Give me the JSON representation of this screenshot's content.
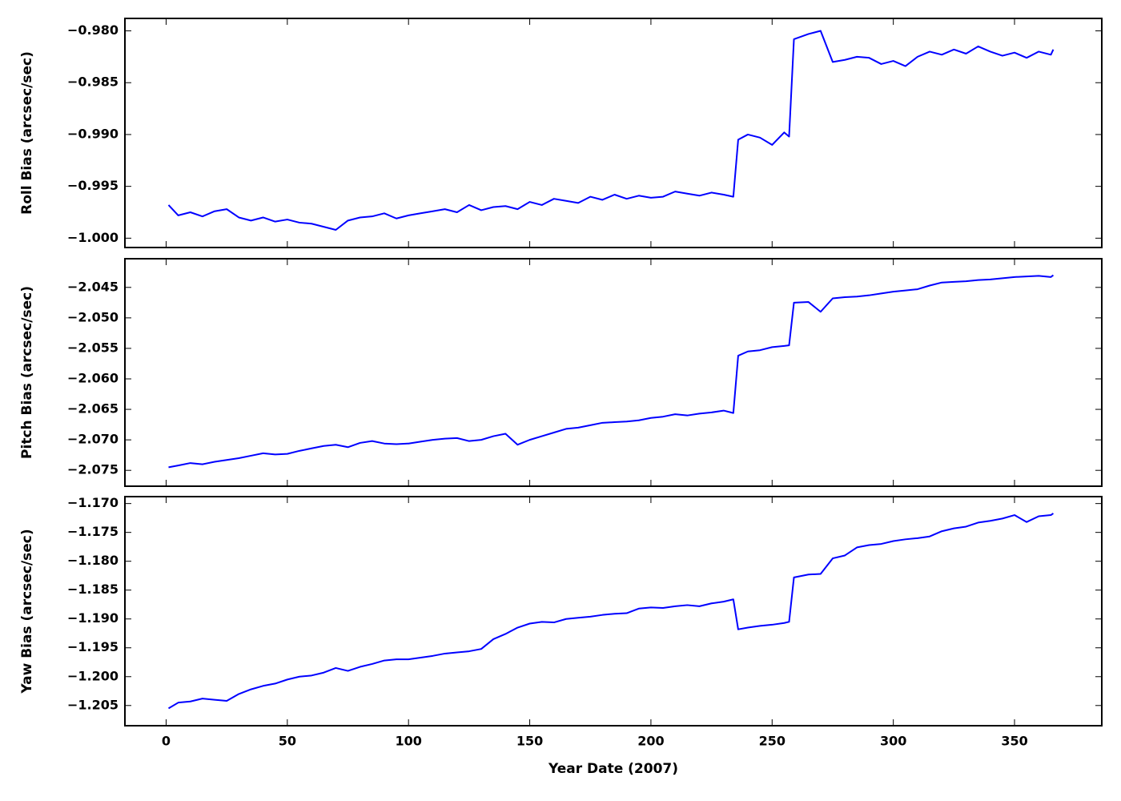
{
  "chart_data": [
    {
      "type": "line",
      "ylabel": "Roll Bias (arcsec/sec)",
      "x": [
        1,
        5,
        10,
        15,
        20,
        25,
        30,
        35,
        40,
        45,
        50,
        55,
        60,
        65,
        70,
        75,
        80,
        85,
        90,
        95,
        100,
        105,
        110,
        115,
        120,
        125,
        130,
        135,
        140,
        145,
        150,
        155,
        160,
        165,
        170,
        175,
        180,
        185,
        190,
        195,
        200,
        205,
        210,
        215,
        220,
        225,
        230,
        234,
        236,
        240,
        245,
        250,
        255,
        257,
        259,
        265,
        270,
        275,
        280,
        285,
        290,
        295,
        300,
        305,
        310,
        315,
        320,
        325,
        330,
        335,
        340,
        345,
        350,
        355,
        360,
        365,
        366
      ],
      "series": [
        {
          "name": "Roll Bias",
          "color": "#0000ff",
          "values": [
            -0.9968,
            -0.9978,
            -0.9975,
            -0.9979,
            -0.9974,
            -0.9972,
            -0.998,
            -0.9983,
            -0.998,
            -0.9984,
            -0.9982,
            -0.9985,
            -0.9986,
            -0.9989,
            -0.9992,
            -0.9983,
            -0.998,
            -0.9979,
            -0.9976,
            -0.9981,
            -0.9978,
            -0.9976,
            -0.9974,
            -0.9972,
            -0.9975,
            -0.9968,
            -0.9973,
            -0.997,
            -0.9969,
            -0.9972,
            -0.9965,
            -0.9968,
            -0.9962,
            -0.9964,
            -0.9966,
            -0.996,
            -0.9963,
            -0.9958,
            -0.9962,
            -0.9959,
            -0.9961,
            -0.996,
            -0.9955,
            -0.9957,
            -0.9959,
            -0.9956,
            -0.9958,
            -0.996,
            -0.9905,
            -0.99,
            -0.9903,
            -0.991,
            -0.9898,
            -0.9902,
            -0.9808,
            -0.9803,
            -0.98,
            -0.983,
            -0.9828,
            -0.9825,
            -0.9826,
            -0.9832,
            -0.9829,
            -0.9834,
            -0.9825,
            -0.982,
            -0.9823,
            -0.9818,
            -0.9822,
            -0.9815,
            -0.982,
            -0.9824,
            -0.9821,
            -0.9826,
            -0.982,
            -0.9823,
            -0.9818
          ]
        }
      ],
      "xlim": [
        -17,
        386
      ],
      "xticks": [
        0,
        50,
        100,
        150,
        200,
        250,
        300,
        350
      ],
      "ylim": [
        -1.0009,
        -0.9788
      ],
      "yticks": [
        {
          "value": -0.98,
          "label": "−0.980"
        },
        {
          "value": -0.985,
          "label": "−0.985"
        },
        {
          "value": -0.99,
          "label": "−0.990"
        },
        {
          "value": -0.995,
          "label": "−0.995"
        },
        {
          "value": -1.0,
          "label": "−1.000"
        }
      ]
    },
    {
      "type": "line",
      "ylabel": "Pitch Bias (arcsec/sec)",
      "x": [
        1,
        5,
        10,
        15,
        20,
        25,
        30,
        35,
        40,
        45,
        50,
        55,
        60,
        65,
        70,
        75,
        80,
        85,
        90,
        95,
        100,
        105,
        110,
        115,
        120,
        125,
        130,
        135,
        140,
        145,
        150,
        155,
        160,
        165,
        170,
        175,
        180,
        185,
        190,
        195,
        200,
        205,
        210,
        215,
        220,
        225,
        230,
        234,
        236,
        240,
        245,
        250,
        255,
        257,
        259,
        265,
        270,
        275,
        280,
        285,
        290,
        295,
        300,
        305,
        310,
        315,
        320,
        325,
        330,
        335,
        340,
        345,
        350,
        355,
        360,
        365,
        366
      ],
      "series": [
        {
          "name": "Pitch Bias",
          "color": "#0000ff",
          "values": [
            -2.0745,
            -2.0742,
            -2.0738,
            -2.074,
            -2.0736,
            -2.0733,
            -2.073,
            -2.0726,
            -2.0722,
            -2.0724,
            -2.0723,
            -2.0718,
            -2.0714,
            -2.071,
            -2.0708,
            -2.0712,
            -2.0705,
            -2.0702,
            -2.0706,
            -2.0707,
            -2.0706,
            -2.0703,
            -2.07,
            -2.0698,
            -2.0697,
            -2.0702,
            -2.07,
            -2.0694,
            -2.069,
            -2.0708,
            -2.07,
            -2.0694,
            -2.0688,
            -2.0682,
            -2.068,
            -2.0676,
            -2.0672,
            -2.0671,
            -2.067,
            -2.0668,
            -2.0664,
            -2.0662,
            -2.0658,
            -2.066,
            -2.0657,
            -2.0655,
            -2.0652,
            -2.0656,
            -2.0562,
            -2.0555,
            -2.0553,
            -2.0548,
            -2.0546,
            -2.0545,
            -2.0475,
            -2.0474,
            -2.049,
            -2.0468,
            -2.0466,
            -2.0465,
            -2.0463,
            -2.046,
            -2.0457,
            -2.0455,
            -2.0453,
            -2.0447,
            -2.0442,
            -2.0441,
            -2.044,
            -2.0438,
            -2.0437,
            -2.0435,
            -2.0433,
            -2.0432,
            -2.0431,
            -2.0433,
            -2.043
          ]
        }
      ],
      "xlim": [
        -17,
        386
      ],
      "xticks": [
        0,
        50,
        100,
        150,
        200,
        250,
        300,
        350
      ],
      "ylim": [
        -2.0776,
        -2.0403
      ],
      "yticks": [
        {
          "value": -2.045,
          "label": "−2.045"
        },
        {
          "value": -2.05,
          "label": "−2.050"
        },
        {
          "value": -2.055,
          "label": "−2.055"
        },
        {
          "value": -2.06,
          "label": "−2.060"
        },
        {
          "value": -2.065,
          "label": "−2.065"
        },
        {
          "value": -2.07,
          "label": "−2.070"
        },
        {
          "value": -2.075,
          "label": "−2.075"
        }
      ]
    },
    {
      "type": "line",
      "ylabel": "Yaw Bias (arcsec/sec)",
      "xlabel": "Year Date (2007)",
      "x": [
        1,
        5,
        10,
        15,
        20,
        25,
        30,
        35,
        40,
        45,
        50,
        55,
        60,
        65,
        70,
        75,
        80,
        85,
        90,
        95,
        100,
        105,
        110,
        115,
        120,
        125,
        130,
        135,
        140,
        145,
        150,
        155,
        160,
        165,
        170,
        175,
        180,
        185,
        190,
        195,
        200,
        205,
        210,
        215,
        220,
        225,
        230,
        234,
        236,
        240,
        245,
        250,
        255,
        257,
        259,
        265,
        270,
        275,
        280,
        285,
        290,
        295,
        300,
        305,
        310,
        315,
        320,
        325,
        330,
        335,
        340,
        345,
        350,
        355,
        360,
        365,
        366
      ],
      "series": [
        {
          "name": "Yaw Bias",
          "color": "#0000ff",
          "values": [
            -1.2055,
            -1.2045,
            -1.2043,
            -1.2038,
            -1.204,
            -1.2042,
            -1.203,
            -1.2022,
            -1.2016,
            -1.2012,
            -1.2005,
            -1.2,
            -1.1998,
            -1.1993,
            -1.1985,
            -1.199,
            -1.1983,
            -1.1978,
            -1.1972,
            -1.197,
            -1.197,
            -1.1967,
            -1.1964,
            -1.196,
            -1.1958,
            -1.1956,
            -1.1952,
            -1.1935,
            -1.1926,
            -1.1915,
            -1.1908,
            -1.1905,
            -1.1906,
            -1.19,
            -1.1898,
            -1.1896,
            -1.1893,
            -1.1891,
            -1.189,
            -1.1882,
            -1.188,
            -1.1881,
            -1.1878,
            -1.1876,
            -1.1878,
            -1.1873,
            -1.187,
            -1.1866,
            -1.1918,
            -1.1915,
            -1.1912,
            -1.191,
            -1.1907,
            -1.1905,
            -1.1828,
            -1.1823,
            -1.1822,
            -1.1795,
            -1.179,
            -1.1776,
            -1.1772,
            -1.177,
            -1.1765,
            -1.1762,
            -1.176,
            -1.1757,
            -1.1748,
            -1.1743,
            -1.174,
            -1.1733,
            -1.173,
            -1.1726,
            -1.172,
            -1.1732,
            -1.1722,
            -1.172,
            -1.1717
          ]
        }
      ],
      "xlim": [
        -17,
        386
      ],
      "xticks": [
        0,
        50,
        100,
        150,
        200,
        250,
        300,
        350
      ],
      "ylim": [
        -1.2085,
        -1.1688
      ],
      "yticks": [
        {
          "value": -1.17,
          "label": "−1.170"
        },
        {
          "value": -1.175,
          "label": "−1.175"
        },
        {
          "value": -1.18,
          "label": "−1.180"
        },
        {
          "value": -1.185,
          "label": "−1.185"
        },
        {
          "value": -1.19,
          "label": "−1.190"
        },
        {
          "value": -1.195,
          "label": "−1.195"
        },
        {
          "value": -1.2,
          "label": "−1.200"
        },
        {
          "value": -1.205,
          "label": "−1.205"
        }
      ]
    }
  ]
}
